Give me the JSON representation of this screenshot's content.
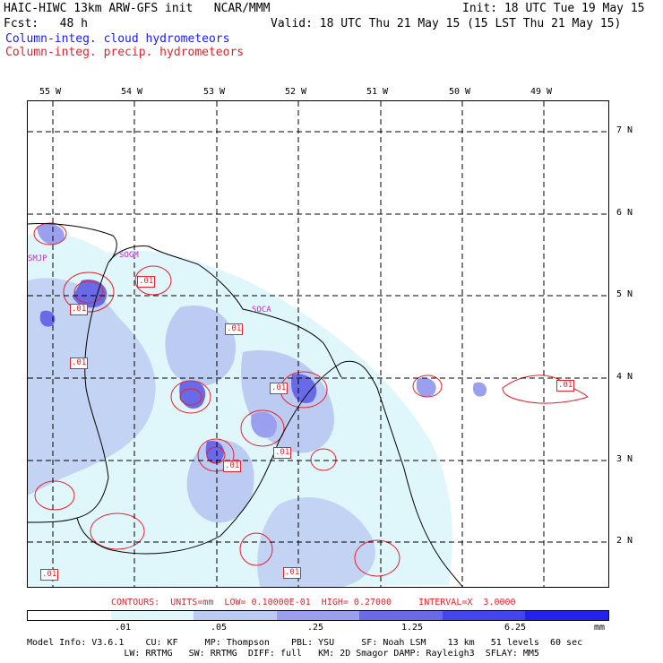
{
  "header": {
    "line1_left": "HAIC-HIWC 13km ARW-GFS init   NCAR/MMM",
    "line1_right": "Init: 18 UTC Tue 19 May 15",
    "line2_left": "Fcst:   48 h",
    "line2_right": "Valid: 18 UTC Thu 21 May 15 (15 LST Thu 21 May 15)",
    "field1": "Column-integ. cloud hydrometeors",
    "field2": "Column-integ. precip. hydrometeors"
  },
  "axes": {
    "lon_labels": [
      "55 W",
      "54 W",
      "53 W",
      "52 W",
      "51 W",
      "50 W",
      "49 W"
    ],
    "lat_labels": [
      "7 N",
      "6 N",
      "5 N",
      "4 N",
      "3 N",
      "2 N"
    ]
  },
  "map_labels": {
    "contour_values": [
      ".01",
      ".01",
      ".01",
      ".01",
      ".01",
      ".01",
      ".01",
      ".01",
      ".01",
      ".01"
    ],
    "stations": [
      "SMJP",
      "SOGM",
      "SOCA"
    ]
  },
  "contour_info": "CONTOURS:  UNITS=mm  LOW= 0.10000E-01  HIGH= 0.27000     INTERVAL=X  3.0000",
  "legend": {
    "ticks": [
      ".01",
      ".05",
      ".25",
      "1.25",
      "6.25"
    ],
    "unit": "mm",
    "colors": [
      "#ffffff",
      "#dff6fb",
      "#bccbf2",
      "#9aa0ee",
      "#6a6ae8",
      "#4444ee",
      "#2222ee"
    ]
  },
  "footer": {
    "line1": "Model Info: V3.6.1    CU: KF     MP: Thompson    PBL: YSU     SF: Noah LSM    13 km   51 levels  60 sec",
    "line2": "                  LW: RRTMG   SW: RRTMG  DIFF: full   KM: 2D Smagor DAMP: Rayleigh3  SFLAY: MM5"
  }
}
